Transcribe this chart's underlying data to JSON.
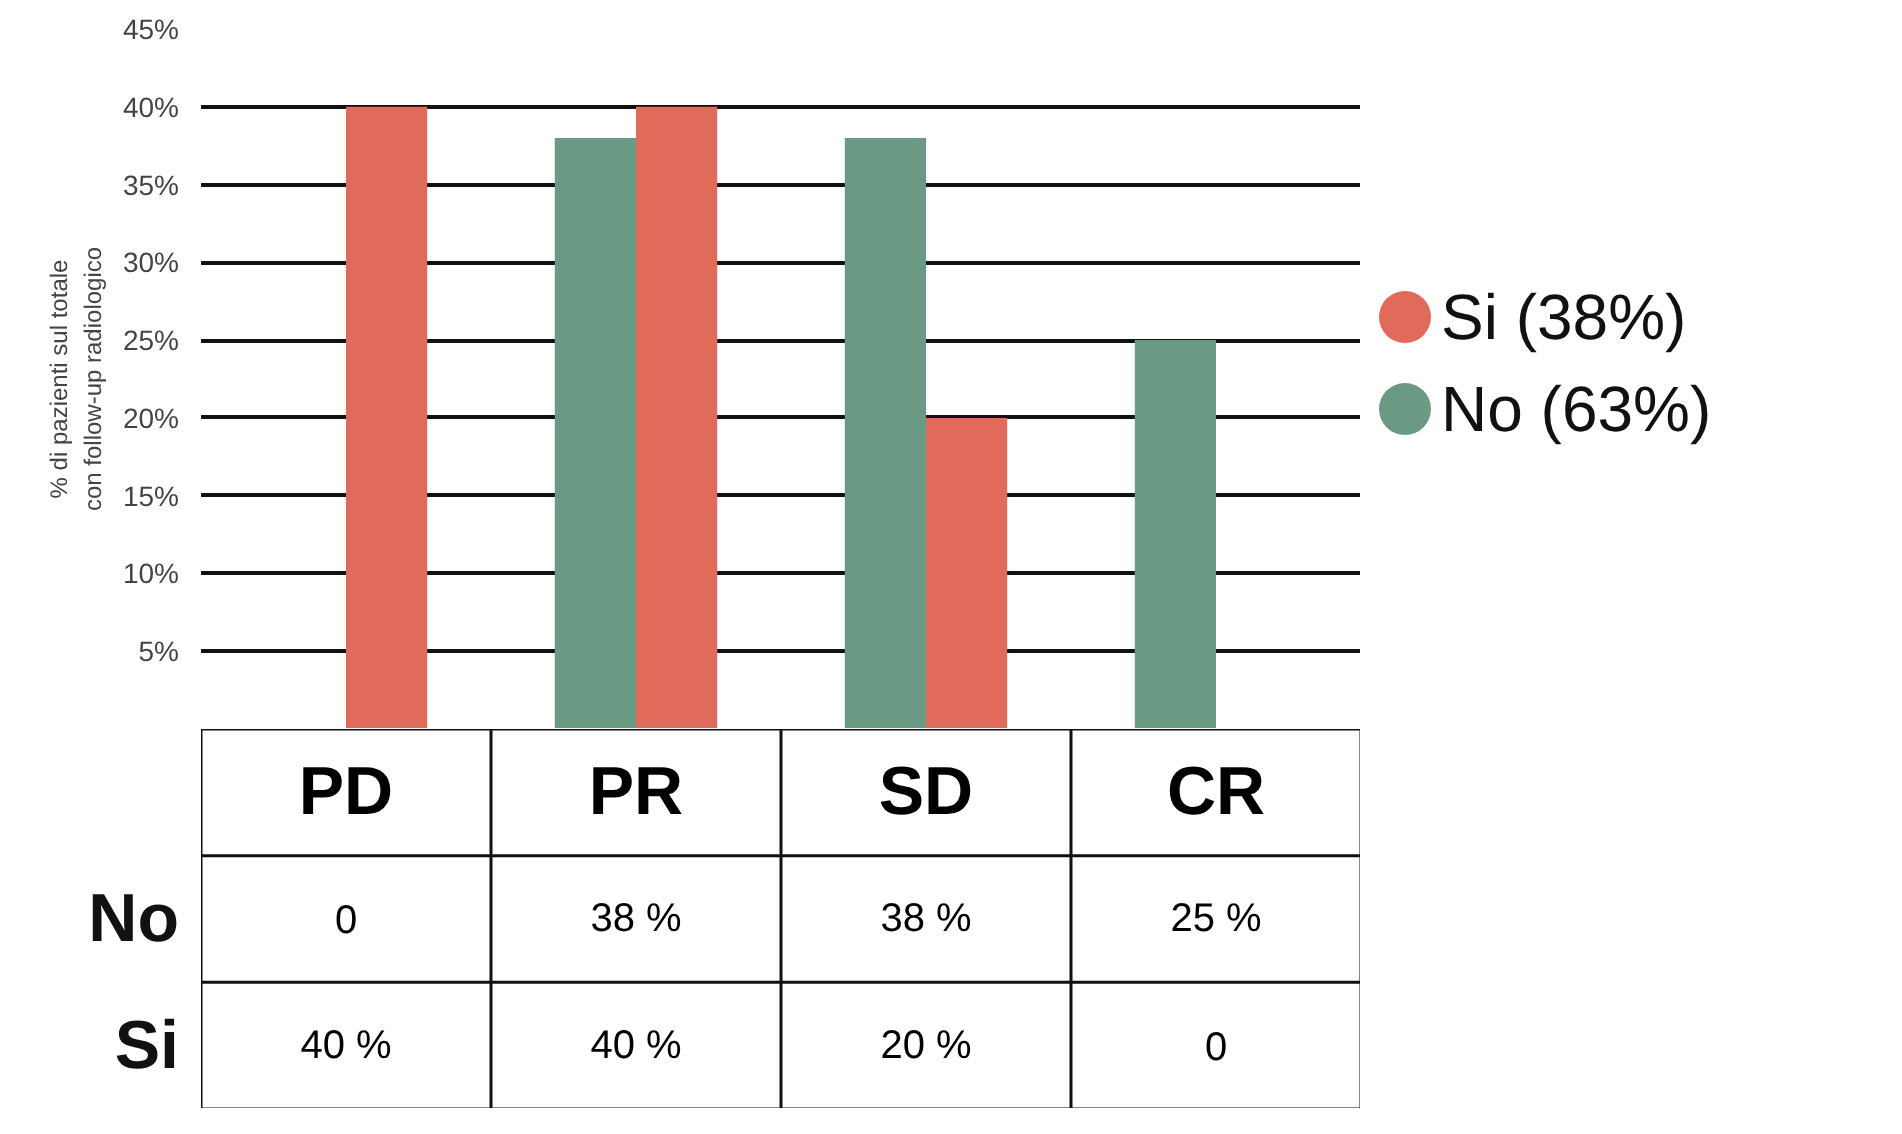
{
  "chart_data": {
    "type": "bar",
    "ylabel": "% di pazienti sul totale\ncon follow-up radiologico",
    "categories": [
      "PD",
      "PR",
      "SD",
      "CR"
    ],
    "series": [
      {
        "name": "Si (38%)",
        "color": "#e06b5a",
        "values": [
          40,
          40,
          20,
          0
        ],
        "value_labels": [
          "40 %",
          "40 %",
          "20 %",
          "0"
        ]
      },
      {
        "name": "No (63%)",
        "color": "#6a9a84",
        "values": [
          0,
          38,
          38,
          25
        ],
        "value_labels": [
          "0",
          "38 %",
          "38 %",
          "25 %"
        ]
      }
    ],
    "annotations": [
      "Si",
      "No"
    ],
    "ylim": [
      0,
      45
    ],
    "yticks": [
      {
        "value": 5,
        "label": "5%"
      },
      {
        "value": 10,
        "label": "10%"
      },
      {
        "value": 15,
        "label": "15%"
      },
      {
        "value": 20,
        "label": "20%"
      },
      {
        "value": 25,
        "label": "25%"
      },
      {
        "value": 30,
        "label": "30%"
      },
      {
        "value": 35,
        "label": "35%"
      },
      {
        "value": 40,
        "label": "40%"
      },
      {
        "value": 45,
        "label": "45%"
      }
    ],
    "grid": "y",
    "legend": "right",
    "data_labels": true
  }
}
